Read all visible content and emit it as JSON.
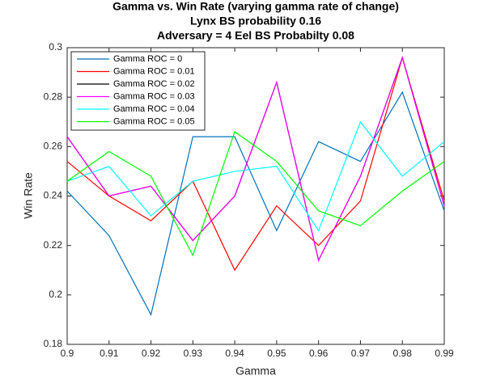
{
  "chart_data": {
    "type": "line",
    "title": "Gamma vs. Win Rate (varying gamma rate of change)",
    "subtitle": [
      "Lynx BS probability 0.16",
      "Adversary = 4 Eel BS Probabilty 0.08"
    ],
    "x_label": "Gamma",
    "y_label": "Win Rate",
    "x": [
      0.9,
      0.91,
      0.92,
      0.93,
      0.94,
      0.95,
      0.96,
      0.97,
      0.98,
      0.99
    ],
    "series": [
      {
        "name": "Gamma ROC = 0",
        "color": "#0072bd",
        "values": [
          0.242,
          0.224,
          0.192,
          0.264,
          0.264,
          0.226,
          0.262,
          0.254,
          0.282,
          0.234
        ]
      },
      {
        "name": "Gamma ROC = 0.01",
        "color": "#ff0000",
        "values": [
          0.254,
          0.24,
          0.23,
          0.246,
          0.21,
          0.236,
          0.22,
          0.238,
          0.296,
          0.238
        ]
      },
      {
        "name": "Gamma ROC = 0.02",
        "color": "#000000",
        "values": [
          0.264,
          0.24,
          0.244,
          0.222,
          0.24,
          0.286,
          0.214,
          0.248,
          0.296,
          0.236
        ]
      },
      {
        "name": "Gamma ROC = 0.03",
        "color": "#ff00ff",
        "values": [
          0.264,
          0.24,
          0.244,
          0.222,
          0.24,
          0.286,
          0.214,
          0.248,
          0.296,
          0.236
        ]
      },
      {
        "name": "Gamma ROC = 0.04",
        "color": "#00ffff",
        "values": [
          0.246,
          0.252,
          0.232,
          0.246,
          0.25,
          0.252,
          0.226,
          0.27,
          0.248,
          0.262
        ]
      },
      {
        "name": "Gamma ROC = 0.05",
        "color": "#00ff00",
        "values": [
          0.246,
          0.258,
          0.248,
          0.216,
          0.266,
          0.254,
          0.234,
          0.228,
          0.242,
          0.254
        ]
      }
    ],
    "xlim": [
      0.9,
      0.99
    ],
    "xticks": [
      0.9,
      0.91,
      0.92,
      0.93,
      0.94,
      0.95,
      0.96,
      0.97,
      0.98,
      0.99
    ],
    "ylim": [
      0.18,
      0.3
    ],
    "yticks": [
      0.18,
      0.2,
      0.22,
      0.24,
      0.26,
      0.28,
      0.3
    ],
    "grid": false,
    "legend": "upper left"
  }
}
